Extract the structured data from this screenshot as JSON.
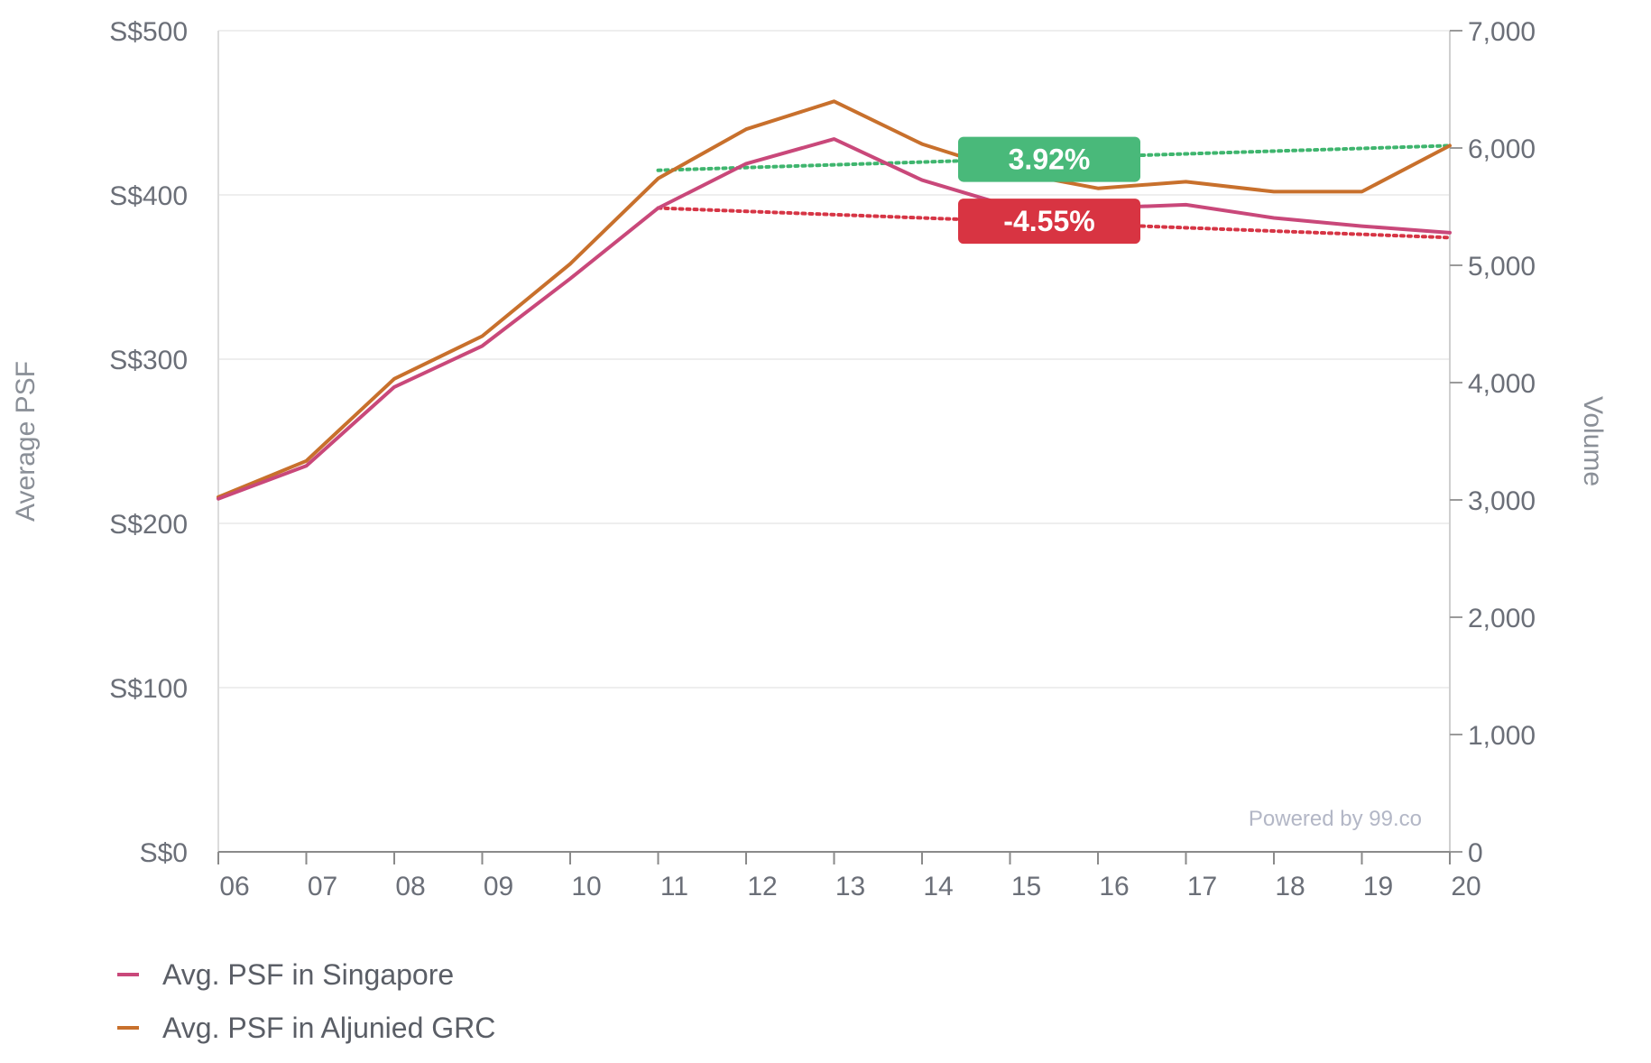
{
  "chart_data": {
    "type": "line",
    "x": [
      "06",
      "07",
      "08",
      "09",
      "10",
      "11",
      "12",
      "13",
      "14",
      "15",
      "16",
      "17",
      "18",
      "19",
      "20"
    ],
    "series": [
      {
        "name": "Avg. PSF in Singapore",
        "color": "#c9487a",
        "values": [
          215,
          235,
          283,
          308,
          349,
          392,
          419,
          434,
          409,
          393,
          392,
          394,
          386,
          381,
          377
        ]
      },
      {
        "name": "Avg. PSF in Aljunied GRC",
        "color": "#c8702c",
        "values": [
          216,
          238,
          288,
          314,
          358,
          410,
          440,
          457,
          431,
          414,
          404,
          408,
          402,
          402,
          430
        ]
      }
    ],
    "trendlines": [
      {
        "label": "3.92%",
        "color": "#3fb56e",
        "badge_color": "#49b97a",
        "x_start": "11",
        "x_end": "20",
        "y_start": 415,
        "y_end": 430
      },
      {
        "label": "-4.55%",
        "color": "#d63545",
        "badge_color": "#d83442",
        "x_start": "11",
        "x_end": "20",
        "y_start": 392,
        "y_end": 374
      }
    ],
    "y_left": {
      "label": "Average PSF",
      "ylim": [
        0,
        500
      ],
      "ticks": [
        0,
        100,
        200,
        300,
        400,
        500
      ],
      "tick_labels": [
        "S$0",
        "S$100",
        "S$200",
        "S$300",
        "S$400",
        "S$500"
      ]
    },
    "y_right": {
      "label": "Volume",
      "ylim": [
        0,
        7000
      ],
      "ticks": [
        0,
        1000,
        2000,
        3000,
        4000,
        5000,
        6000,
        7000
      ],
      "tick_labels": [
        "0",
        "1,000",
        "2,000",
        "3,000",
        "4,000",
        "5,000",
        "6,000",
        "7,000"
      ]
    },
    "grid": true,
    "legend": "bottom-left",
    "credit": "Powered by 99.co"
  }
}
